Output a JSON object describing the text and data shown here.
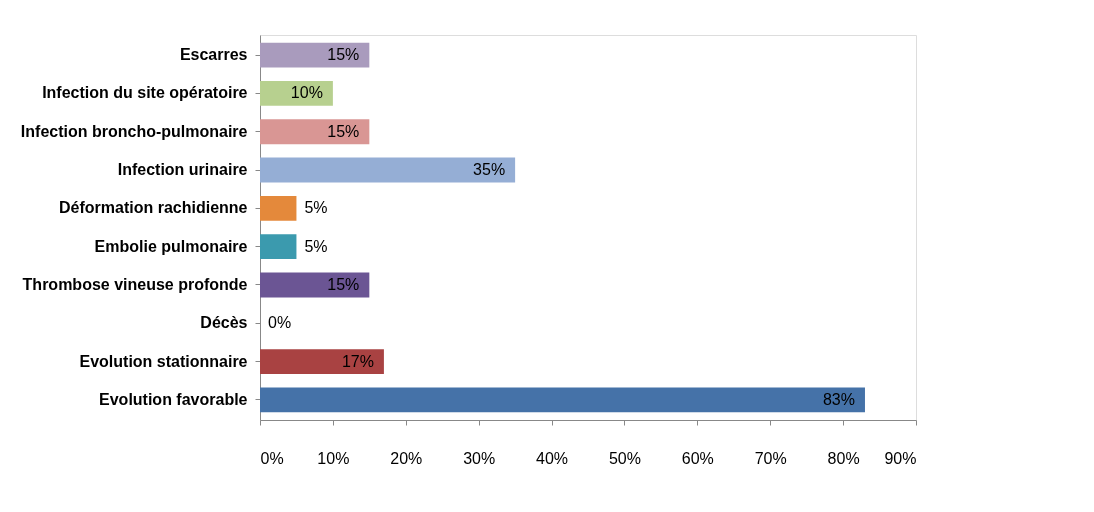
{
  "chart_data": {
    "type": "bar",
    "orientation": "horizontal",
    "categories": [
      "Escarres",
      "Infection du site opératoire",
      "Infection broncho-pulmonaire",
      "Infection urinaire",
      "Déformation rachidienne",
      "Embolie pulmonaire",
      "Thrombose vineuse profonde",
      "Décès",
      "Evolution stationnaire",
      "Evolution favorable"
    ],
    "values": [
      15,
      10,
      15,
      35,
      5,
      5,
      15,
      0,
      17,
      83
    ],
    "value_labels": [
      "15%",
      "10%",
      "15%",
      "35%",
      "5%",
      "5%",
      "15%",
      "0%",
      "17%",
      "83%"
    ],
    "colors": [
      "#a99bbd",
      "#b7d08f",
      "#d99694",
      "#95aed5",
      "#e4893b",
      "#3b9aae",
      "#6b5594",
      "#ffffff",
      "#a94242",
      "#4572a8"
    ],
    "xlim": [
      0,
      90
    ],
    "xticks": [
      {
        "value": 0,
        "label": "0%"
      },
      {
        "value": 10,
        "label": "10%"
      },
      {
        "value": 20,
        "label": "20%"
      },
      {
        "value": 30,
        "label": "30%"
      },
      {
        "value": 40,
        "label": "40%"
      },
      {
        "value": 50,
        "label": "50%"
      },
      {
        "value": 60,
        "label": "60%"
      },
      {
        "value": 70,
        "label": "70%"
      },
      {
        "value": 80,
        "label": "80%"
      },
      {
        "value": 90,
        "label": "90%"
      }
    ],
    "grid": false
  }
}
